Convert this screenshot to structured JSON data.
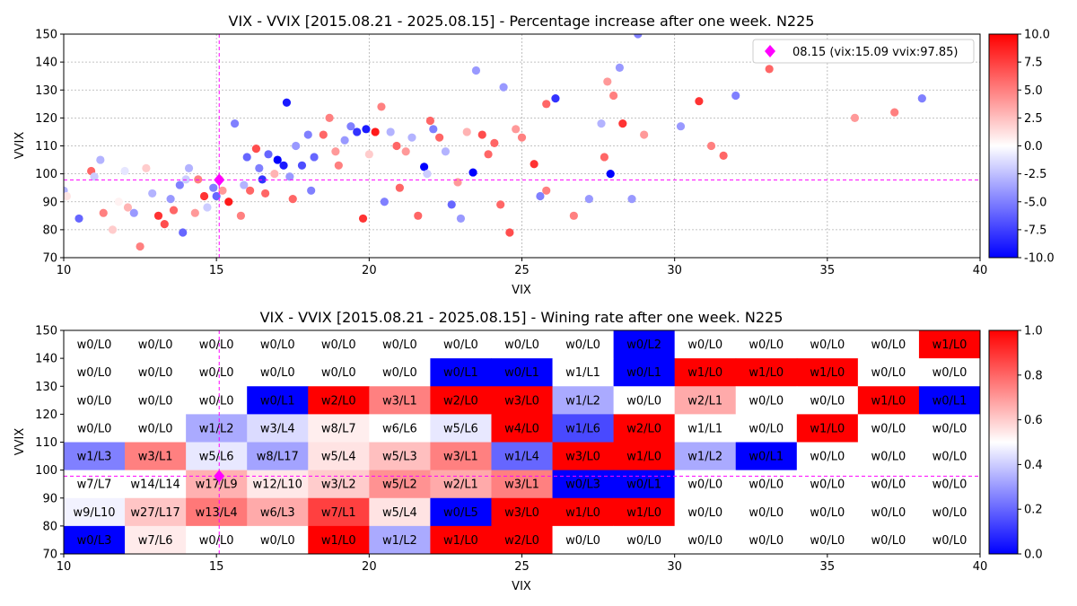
{
  "chart_data": [
    {
      "type": "scatter",
      "title": "VIX - VVIX [2015.08.21 - 2025.08.15]  - Percentage increase after one week. N225",
      "xlabel": "VIX",
      "ylabel": "VVIX",
      "xlim": [
        10,
        40
      ],
      "ylim": [
        70,
        150
      ],
      "xticks": [
        10,
        15,
        20,
        25,
        30,
        35,
        40
      ],
      "yticks": [
        70,
        80,
        90,
        100,
        110,
        120,
        130,
        140,
        150
      ],
      "grid": true,
      "colormap": "bwr",
      "color_range": [
        -10.0,
        10.0
      ],
      "colorbar_ticks": [
        "10.0",
        "7.5",
        "5.0",
        "2.5",
        "0.0",
        "-2.5",
        "-5.0",
        "-7.5",
        "-10.0"
      ],
      "colorbar_tick_values": [
        10,
        7.5,
        5,
        2.5,
        0,
        -2.5,
        -5,
        -7.5,
        -10
      ],
      "legend": {
        "label": "08.15 (vix:15.09 vvix:97.85)",
        "placement": "top-right",
        "marker_color": "#ff00ff"
      },
      "current": {
        "vix": 15.09,
        "vvix": 97.85
      },
      "points": [
        [
          10.0,
          94,
          -3
        ],
        [
          10.1,
          92,
          1
        ],
        [
          10.5,
          84,
          -6
        ],
        [
          10.9,
          101,
          6
        ],
        [
          11.0,
          99,
          -2
        ],
        [
          11.2,
          105,
          -3
        ],
        [
          11.3,
          86,
          5
        ],
        [
          11.6,
          80,
          2
        ],
        [
          11.8,
          90,
          0.5
        ],
        [
          12.0,
          101,
          -1
        ],
        [
          12.1,
          88,
          3
        ],
        [
          12.3,
          86,
          -4
        ],
        [
          12.5,
          74,
          5
        ],
        [
          12.7,
          102,
          2
        ],
        [
          12.9,
          93,
          -3
        ],
        [
          13.1,
          85,
          8
        ],
        [
          13.3,
          82,
          7
        ],
        [
          13.5,
          91,
          -4
        ],
        [
          13.6,
          87,
          6
        ],
        [
          13.8,
          96,
          -5
        ],
        [
          13.9,
          79,
          -6
        ],
        [
          14.0,
          98,
          -2
        ],
        [
          14.1,
          102,
          -3
        ],
        [
          14.3,
          86,
          4
        ],
        [
          14.4,
          98,
          5
        ],
        [
          14.6,
          92,
          8
        ],
        [
          14.7,
          88,
          -2
        ],
        [
          14.9,
          95,
          -5
        ],
        [
          15.0,
          92,
          -6
        ],
        [
          15.1,
          98,
          3
        ],
        [
          15.2,
          94,
          4
        ],
        [
          15.4,
          90,
          9
        ],
        [
          15.6,
          118,
          -5
        ],
        [
          15.8,
          85,
          5
        ],
        [
          15.9,
          96,
          -3
        ],
        [
          16.0,
          106,
          -6
        ],
        [
          16.1,
          94,
          6
        ],
        [
          16.3,
          109,
          7
        ],
        [
          16.4,
          102,
          -5
        ],
        [
          16.5,
          98,
          -8
        ],
        [
          16.6,
          93,
          6
        ],
        [
          16.7,
          107,
          -6
        ],
        [
          16.9,
          100,
          3
        ],
        [
          17.0,
          105,
          -10
        ],
        [
          17.2,
          103,
          -9
        ],
        [
          17.3,
          125.5,
          -9
        ],
        [
          17.4,
          99,
          -4
        ],
        [
          17.5,
          91,
          6
        ],
        [
          17.6,
          110,
          -4
        ],
        [
          17.8,
          103,
          -7
        ],
        [
          18.0,
          114,
          -5
        ],
        [
          18.1,
          94,
          -5
        ],
        [
          18.2,
          106,
          -6
        ],
        [
          18.5,
          114,
          6
        ],
        [
          18.7,
          120,
          5
        ],
        [
          18.9,
          108,
          4
        ],
        [
          19.0,
          103,
          5
        ],
        [
          19.2,
          112,
          -4
        ],
        [
          19.4,
          117,
          -5
        ],
        [
          19.6,
          115,
          -8
        ],
        [
          19.8,
          84,
          8
        ],
        [
          19.9,
          116,
          -9
        ],
        [
          20.0,
          107,
          2
        ],
        [
          20.2,
          115,
          9
        ],
        [
          20.4,
          124,
          5
        ],
        [
          20.5,
          90,
          -5
        ],
        [
          20.7,
          115,
          -3
        ],
        [
          20.9,
          110,
          6
        ],
        [
          21.0,
          95,
          6
        ],
        [
          21.2,
          108,
          4
        ],
        [
          21.4,
          113,
          -3
        ],
        [
          21.6,
          85,
          6
        ],
        [
          21.8,
          102.5,
          -10
        ],
        [
          21.9,
          100,
          -2
        ],
        [
          22.0,
          119,
          6
        ],
        [
          22.1,
          116,
          -5
        ],
        [
          22.3,
          113,
          6
        ],
        [
          22.5,
          108,
          -3
        ],
        [
          22.7,
          89,
          -6
        ],
        [
          22.9,
          97,
          4
        ],
        [
          23.0,
          84,
          -4
        ],
        [
          23.2,
          115,
          3
        ],
        [
          23.4,
          100.5,
          -10
        ],
        [
          23.5,
          137,
          -4
        ],
        [
          23.7,
          114,
          7
        ],
        [
          23.9,
          107,
          6
        ],
        [
          24.1,
          111,
          6
        ],
        [
          24.3,
          89,
          6
        ],
        [
          24.4,
          131,
          -4
        ],
        [
          24.6,
          79,
          7
        ],
        [
          24.8,
          116,
          4
        ],
        [
          25.0,
          113,
          5
        ],
        [
          25.4,
          103.5,
          8
        ],
        [
          25.6,
          92,
          -5
        ],
        [
          25.8,
          125,
          6
        ],
        [
          25.8,
          94,
          5
        ],
        [
          26.1,
          127,
          -8
        ],
        [
          26.7,
          85,
          5
        ],
        [
          27.2,
          91,
          -4
        ],
        [
          27.6,
          118,
          -3
        ],
        [
          27.7,
          106,
          6
        ],
        [
          27.8,
          133,
          4
        ],
        [
          27.9,
          100,
          -10
        ],
        [
          28.0,
          128,
          5
        ],
        [
          28.2,
          138,
          -4
        ],
        [
          28.3,
          118,
          8
        ],
        [
          28.6,
          91,
          -4
        ],
        [
          28.8,
          150,
          -5
        ],
        [
          29.0,
          114,
          4
        ],
        [
          30.2,
          117,
          -4
        ],
        [
          30.8,
          126,
          8
        ],
        [
          31.2,
          110,
          5
        ],
        [
          31.6,
          106.5,
          6
        ],
        [
          32.0,
          128,
          -5
        ],
        [
          33.1,
          137.5,
          6
        ],
        [
          35.9,
          120,
          4
        ],
        [
          37.2,
          122,
          5
        ],
        [
          38.1,
          127,
          -5
        ]
      ]
    },
    {
      "type": "heatmap",
      "title": "VIX - VVIX [2015.08.21 - 2025.08.15]  - Wining rate after one week. N225",
      "xlabel": "VIX",
      "ylabel": "VVIX",
      "xlim": [
        10,
        40
      ],
      "ylim": [
        70,
        150
      ],
      "xticks": [
        10,
        15,
        20,
        25,
        30,
        35,
        40
      ],
      "yticks": [
        70,
        80,
        90,
        100,
        110,
        120,
        130,
        140,
        150
      ],
      "colormap": "bwr",
      "color_range": [
        0.0,
        1.0
      ],
      "colorbar_ticks": [
        "1.0",
        "0.8",
        "0.6",
        "0.4",
        "0.2",
        "0.0"
      ],
      "colorbar_tick_values": [
        1.0,
        0.8,
        0.6,
        0.4,
        0.2,
        0.0
      ],
      "x_bins": [
        10,
        12,
        14,
        16,
        18,
        20,
        22,
        24,
        26,
        28,
        30,
        32,
        34,
        36,
        38,
        40
      ],
      "y_bins": [
        70,
        80,
        90,
        100,
        110,
        120,
        130,
        140,
        150
      ],
      "rows_top_to_bottom": [
        [
          "w0/L0",
          "w0/L0",
          "w0/L0",
          "w0/L0",
          "w0/L0",
          "w0/L0",
          "w0/L0",
          "w0/L0",
          "w0/L0",
          "w0/L2",
          "w0/L0",
          "w0/L0",
          "w0/L0",
          "w0/L0",
          "w1/L0"
        ],
        [
          "w0/L0",
          "w0/L0",
          "w0/L0",
          "w0/L0",
          "w0/L0",
          "w0/L0",
          "w0/L1",
          "w0/L1",
          "w1/L1",
          "w0/L1",
          "w1/L0",
          "w1/L0",
          "w1/L0",
          "w0/L0",
          "w0/L0"
        ],
        [
          "w0/L0",
          "w0/L0",
          "w0/L0",
          "w0/L1",
          "w2/L0",
          "w3/L1",
          "w2/L0",
          "w3/L0",
          "w1/L2",
          "w0/L0",
          "w2/L1",
          "w0/L0",
          "w0/L0",
          "w1/L0",
          "w0/L1"
        ],
        [
          "w0/L0",
          "w0/L0",
          "w1/L2",
          "w3/L4",
          "w8/L7",
          "w6/L6",
          "w5/L6",
          "w4/L0",
          "w1/L6",
          "w2/L0",
          "w1/L1",
          "w0/L0",
          "w1/L0",
          "w0/L0",
          "w0/L0"
        ],
        [
          "w1/L3",
          "w3/L1",
          "w5/L6",
          "w8/L17",
          "w5/L4",
          "w5/L3",
          "w3/L1",
          "w1/L4",
          "w3/L0",
          "w1/L0",
          "w1/L2",
          "w0/L1",
          "w0/L0",
          "w0/L0",
          "w0/L0"
        ],
        [
          "w7/L7",
          "w14/L14",
          "w17/L9",
          "w12/L10",
          "w3/L2",
          "w5/L2",
          "w2/L1",
          "w3/L1",
          "w0/L3",
          "w0/L1",
          "w0/L0",
          "w0/L0",
          "w0/L0",
          "w0/L0",
          "w0/L0"
        ],
        [
          "w9/L10",
          "w27/L17",
          "w13/L4",
          "w6/L3",
          "w7/L1",
          "w5/L4",
          "w0/L5",
          "w3/L0",
          "w1/L0",
          "w1/L0",
          "w0/L0",
          "w0/L0",
          "w0/L0",
          "w0/L0",
          "w0/L0"
        ],
        [
          "w0/L3",
          "w7/L6",
          "w0/L0",
          "w0/L0",
          "w1/L0",
          "w1/L2",
          "w1/L0",
          "w2/L0",
          "w0/L0",
          "w0/L0",
          "w0/L0",
          "w0/L0",
          "w0/L0",
          "w0/L0",
          "w0/L0"
        ]
      ],
      "current": {
        "vix": 15.09,
        "vvix": 97.85
      }
    }
  ]
}
